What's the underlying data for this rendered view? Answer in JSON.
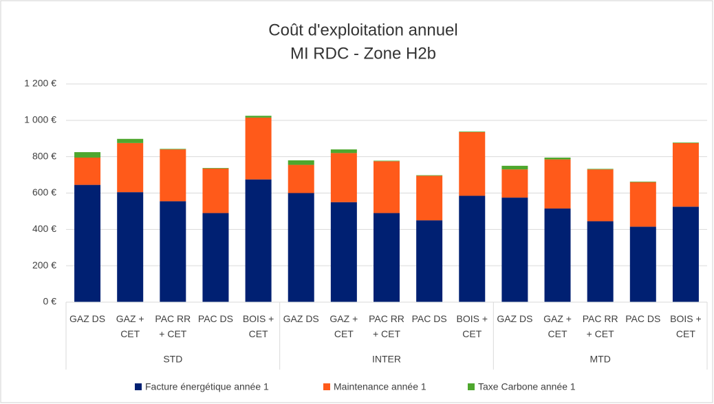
{
  "chart_data": {
    "type": "stacked_bar",
    "title": "Coût d'exploitation annuel",
    "subtitle": "MI RDC - Zone H2b",
    "categories": [
      "GAZ DS",
      "GAZ + CET",
      "PAC RR + CET",
      "PAC DS",
      "BOIS + CET",
      "GAZ DS",
      "GAZ + CET",
      "PAC RR + CET",
      "PAC DS",
      "BOIS + CET",
      "GAZ DS",
      "GAZ + CET",
      "PAC RR + CET",
      "PAC DS",
      "BOIS + CET"
    ],
    "groups": [
      "STD",
      "INTER",
      "MTD"
    ],
    "series": [
      {
        "name": "Facture énergétique année 1",
        "color": "#002072",
        "values": [
          645,
          605,
          555,
          490,
          675,
          600,
          550,
          490,
          450,
          585,
          575,
          515,
          445,
          415,
          525
        ]
      },
      {
        "name": "Maintenance année 1",
        "color": "#ff5a1a",
        "values": [
          150,
          270,
          285,
          245,
          340,
          155,
          270,
          285,
          245,
          350,
          155,
          270,
          285,
          245,
          350
        ]
      },
      {
        "name": "Taxe Carbone année 1",
        "color": "#4ea72e",
        "values": [
          30,
          23,
          3,
          3,
          10,
          25,
          20,
          3,
          3,
          3,
          20,
          10,
          3,
          3,
          3
        ]
      }
    ],
    "ylim": [
      0,
      1200
    ],
    "yticks": [
      {
        "value": 0,
        "label": "0 €"
      },
      {
        "value": 200,
        "label": "200 €"
      },
      {
        "value": 400,
        "label": "400 €"
      },
      {
        "value": 600,
        "label": "600 €"
      },
      {
        "value": 800,
        "label": "800 €"
      },
      {
        "value": 1000,
        "label": "1 000 €"
      },
      {
        "value": 1200,
        "label": "1 200 €"
      }
    ],
    "grid": true,
    "legend": "bottom"
  }
}
